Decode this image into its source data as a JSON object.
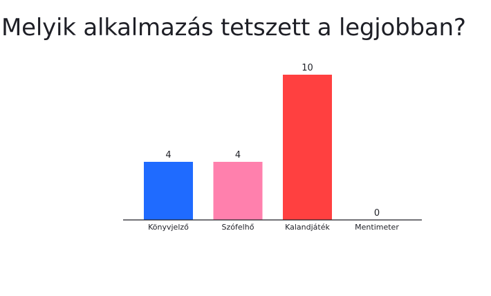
{
  "slide": {
    "title": "Melyik alkalmazás tetszett a legjobban?"
  },
  "chart_data": {
    "type": "bar",
    "title": "Melyik alkalmazás tetszett a legjobban?",
    "categories": [
      "Könyvjelző",
      "Szófelhő",
      "Kalandjáték",
      "Mentimeter"
    ],
    "values": [
      4,
      4,
      10,
      0
    ],
    "colors": [
      "#1f6bff",
      "#ff80ad",
      "#ff4040",
      "#1f6bff"
    ],
    "axis_color": "#1e1f26",
    "ylim": [
      0,
      10
    ],
    "grid": false,
    "legend": "none"
  }
}
